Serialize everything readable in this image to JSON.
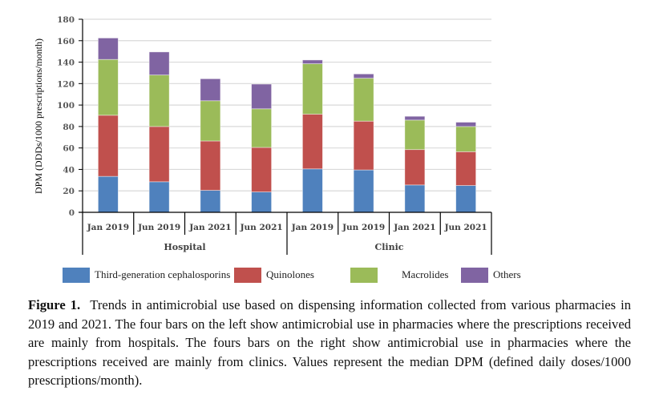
{
  "chart_data": {
    "type": "bar",
    "stacked": true,
    "title": "",
    "xlabel": "",
    "ylabel": "DPM (DDDs/1000 prescriptions/month)",
    "ylim": [
      0,
      180
    ],
    "yticks": [
      "0",
      "20",
      "40",
      "60",
      "80",
      "100",
      "120",
      "140",
      "160",
      "180"
    ],
    "grid": true,
    "groups": [
      {
        "label": "Hospital",
        "categories": [
          "Jan 2019",
          "Jun 2019",
          "Jan 2021",
          "Jun 2021"
        ]
      },
      {
        "label": "Clinic",
        "categories": [
          "Jan 2019",
          "Jun 2019",
          "Jan 2021",
          "Jun 2021"
        ]
      }
    ],
    "categories": [
      "Jan 2019",
      "Jun 2019",
      "Jan 2021",
      "Jun 2021",
      "Jan 2019",
      "Jun 2019",
      "Jan 2021",
      "Jun 2021"
    ],
    "series": [
      {
        "name": "Third-generation cephalosporins",
        "color": "#4f81bd",
        "values": [
          33.5,
          28.5,
          20.5,
          19,
          40.5,
          39.5,
          25.5,
          25
        ]
      },
      {
        "name": "Quinolones",
        "color": "#c0504d",
        "values": [
          57,
          51.5,
          46,
          41.5,
          51,
          45.5,
          33,
          31.5
        ]
      },
      {
        "name": "Macrolides",
        "color": "#9bbb59",
        "values": [
          52,
          48,
          37.5,
          36,
          47,
          40,
          27.5,
          23.5
        ]
      },
      {
        "name": "Others",
        "color": "#8064a2",
        "values": [
          20,
          21.5,
          20.5,
          23,
          3.5,
          4,
          3.5,
          4
        ]
      }
    ],
    "legend_position": "bottom"
  },
  "caption": {
    "label": "Figure 1.",
    "text": "Trends in antimicrobial use based on dispensing information collected from various pharmacies in 2019 and 2021. The four bars on the left show antimicrobial use in pharmacies where the prescriptions received are mainly from hospitals. The fours bars on the right show antimicrobial use in pharmacies where the prescriptions received are mainly from clinics. Values represent the median DPM (defined daily doses/1000 prescriptions/month)."
  }
}
